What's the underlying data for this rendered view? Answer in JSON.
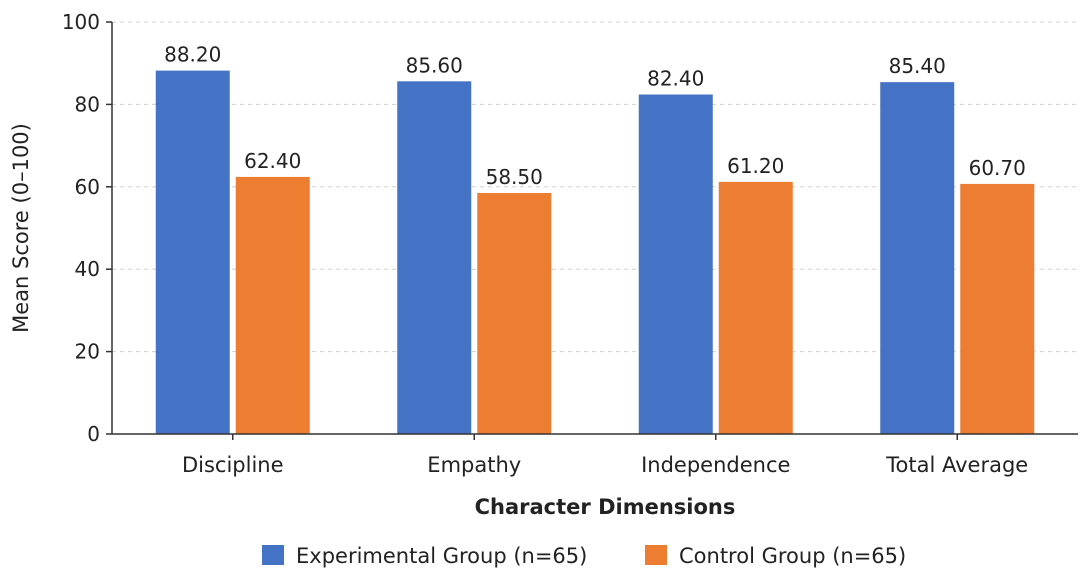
{
  "chart_data": {
    "type": "bar",
    "title": "",
    "xlabel": "Character Dimensions",
    "ylabel": "Mean Score (0–100)",
    "ylim": [
      0,
      100
    ],
    "yticks": [
      0,
      20,
      40,
      60,
      80,
      100
    ],
    "grid": "horizontal dashed",
    "legend_position": "bottom",
    "categories": [
      "Discipline",
      "Empathy",
      "Independence",
      "Total Average"
    ],
    "series": [
      {
        "name": "Experimental Group (n=65)",
        "color": "#4472C4",
        "values": [
          88.2,
          85.6,
          82.4,
          85.4
        ],
        "labels": [
          "88.20",
          "85.60",
          "82.40",
          "85.40"
        ]
      },
      {
        "name": "Control Group (n=65)",
        "color": "#ED7D31",
        "values": [
          62.4,
          58.5,
          61.2,
          60.7
        ],
        "labels": [
          "62.40",
          "58.50",
          "61.20",
          "60.70"
        ]
      }
    ]
  }
}
